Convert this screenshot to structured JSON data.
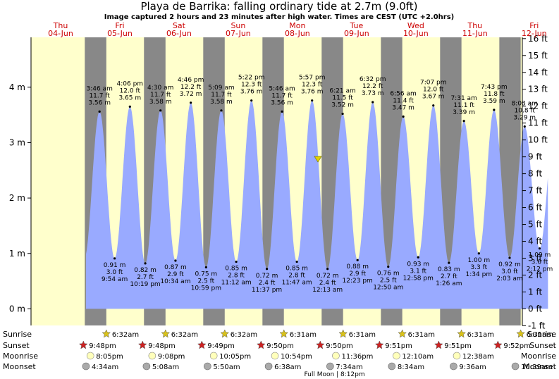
{
  "chart_data": {
    "type": "area",
    "title": "Playa de Barrika: falling  ordinary tide at 2.7m (9.0ft)",
    "subtitle": "Image captured 2 hours and 23 minutes after high water. Times are CEST (UTC +2.0hrs)",
    "y_left_ticks": [
      {
        "v": 0,
        "label": "0 m"
      },
      {
        "v": 1,
        "label": "1 m"
      },
      {
        "v": 2,
        "label": "2 m"
      },
      {
        "v": 3,
        "label": "3 m"
      },
      {
        "v": 4,
        "label": "4 m"
      }
    ],
    "y_right_ticks": [
      "-1 ft",
      "0 ft",
      "1 ft",
      "2 ft",
      "3 ft",
      "4 ft",
      "5 ft",
      "6 ft",
      "7 ft",
      "8 ft",
      "9 ft",
      "10 ft",
      "11 ft",
      "12 ft",
      "13 ft",
      "14 ft",
      "15 ft",
      "16 ft"
    ],
    "ylim": [
      -0.3,
      4.9
    ],
    "days": [
      {
        "name": "Thu",
        "date": "04-Jun"
      },
      {
        "name": "Fri",
        "date": "05-Jun"
      },
      {
        "name": "Sat",
        "date": "06-Jun"
      },
      {
        "name": "Sun",
        "date": "07-Jun"
      },
      {
        "name": "Mon",
        "date": "08-Jun"
      },
      {
        "name": "Tue",
        "date": "09-Jun"
      },
      {
        "name": "Wed",
        "date": "10-Jun"
      },
      {
        "name": "Thu",
        "date": "11-Jun"
      },
      {
        "name": "Fri",
        "date": "12-Jun"
      }
    ],
    "current": {
      "h": 2.7
    },
    "extremes": [
      {
        "type": "high",
        "time": "3:46 am",
        "ft": "11.7 ft",
        "m": "3.56 m",
        "h": 3.56,
        "t": 27.77
      },
      {
        "type": "low",
        "time": "9:54 am",
        "ft": "3.0 ft",
        "m": "0.91 m",
        "h": 0.91,
        "t": 33.9
      },
      {
        "type": "high",
        "time": "4:06 pm",
        "ft": "12.0 ft",
        "m": "3.65 m",
        "h": 3.65,
        "t": 40.1
      },
      {
        "type": "low",
        "time": "10:19 pm",
        "ft": "2.7 ft",
        "m": "0.82 m",
        "h": 0.82,
        "t": 46.32
      },
      {
        "type": "high",
        "time": "4:30 am",
        "ft": "11.7 ft",
        "m": "3.58 m",
        "h": 3.58,
        "t": 52.5
      },
      {
        "type": "low",
        "time": "10:34 am",
        "ft": "2.9 ft",
        "m": "0.87 m",
        "h": 0.87,
        "t": 58.57
      },
      {
        "type": "high",
        "time": "4:46 pm",
        "ft": "12.2 ft",
        "m": "3.72 m",
        "h": 3.72,
        "t": 64.77
      },
      {
        "type": "low",
        "time": "10:59 pm",
        "ft": "2.5 ft",
        "m": "0.75 m",
        "h": 0.75,
        "t": 70.98
      },
      {
        "type": "high",
        "time": "5:09 am",
        "ft": "11.7 ft",
        "m": "3.58 m",
        "h": 3.58,
        "t": 77.15
      },
      {
        "type": "low",
        "time": "11:12 am",
        "ft": "2.8 ft",
        "m": "0.85 m",
        "h": 0.85,
        "t": 83.2
      },
      {
        "type": "high",
        "time": "5:22 pm",
        "ft": "12.3 ft",
        "m": "3.76 m",
        "h": 3.76,
        "t": 89.37
      },
      {
        "type": "low",
        "time": "11:37 pm",
        "ft": "2.4 ft",
        "m": "0.72 m",
        "h": 0.72,
        "t": 95.62
      },
      {
        "type": "high",
        "time": "5:46 am",
        "ft": "11.7 ft",
        "m": "3.56 m",
        "h": 3.56,
        "t": 101.77
      },
      {
        "type": "low",
        "time": "11:47 am",
        "ft": "2.8 ft",
        "m": "0.85 m",
        "h": 0.85,
        "t": 107.78
      },
      {
        "type": "high",
        "time": "5:57 pm",
        "ft": "12.3 ft",
        "m": "3.76 m",
        "h": 3.76,
        "t": 113.95
      },
      {
        "type": "low",
        "time": "12:13 am",
        "ft": "2.4 ft",
        "m": "0.72 m",
        "h": 0.72,
        "t": 120.22
      },
      {
        "type": "high",
        "time": "6:21 am",
        "ft": "11.5 ft",
        "m": "3.52 m",
        "h": 3.52,
        "t": 126.35
      },
      {
        "type": "low",
        "time": "12:23 pm",
        "ft": "2.9 ft",
        "m": "0.88 m",
        "h": 0.88,
        "t": 132.38
      },
      {
        "type": "high",
        "time": "6:32 pm",
        "ft": "12.2 ft",
        "m": "3.73 m",
        "h": 3.73,
        "t": 138.53
      },
      {
        "type": "low",
        "time": "12:50 am",
        "ft": "2.5 ft",
        "m": "0.76 m",
        "h": 0.76,
        "t": 144.83
      },
      {
        "type": "high",
        "time": "6:56 am",
        "ft": "11.4 ft",
        "m": "3.47 m",
        "h": 3.47,
        "t": 150.93
      },
      {
        "type": "low",
        "time": "12:58 pm",
        "ft": "3.1 ft",
        "m": "0.93 m",
        "h": 0.93,
        "t": 156.97
      },
      {
        "type": "high",
        "time": "7:07 pm",
        "ft": "12.0 ft",
        "m": "3.67 m",
        "h": 3.67,
        "t": 163.12
      },
      {
        "type": "low",
        "time": "1:26 am",
        "ft": "2.7 ft",
        "m": "0.83 m",
        "h": 0.83,
        "t": 169.43
      },
      {
        "type": "high",
        "time": "7:31 am",
        "ft": "11.1 ft",
        "m": "3.39 m",
        "h": 3.39,
        "t": 175.52
      },
      {
        "type": "low",
        "time": "1:34 pm",
        "ft": "3.3 ft",
        "m": "1.00 m",
        "h": 1.0,
        "t": 181.57
      },
      {
        "type": "high",
        "time": "7:43 pm",
        "ft": "11.8 ft",
        "m": "3.59 m",
        "h": 3.59,
        "t": 187.72
      },
      {
        "type": "low",
        "time": "2:03 am",
        "ft": "3.0 ft",
        "m": "0.92 m",
        "h": 0.92,
        "t": 194.05
      },
      {
        "type": "high",
        "time": "8:08 am",
        "ft": "10.8 ft",
        "m": "3.29 m",
        "h": 3.29,
        "t": 200.13
      },
      {
        "type": "low",
        "time": "2:12 pm",
        "ft": "3.6 ft",
        "m": "1.09 m",
        "h": 1.09,
        "t": 206.2
      }
    ],
    "sun": [
      {
        "sunrise": "6:32am",
        "sunset": "9:48pm"
      },
      {
        "sunrise": "6:32am",
        "sunset": "9:48pm"
      },
      {
        "sunrise": "6:32am",
        "sunset": "9:49pm"
      },
      {
        "sunrise": "6:31am",
        "sunset": "9:50pm"
      },
      {
        "sunrise": "6:31am",
        "sunset": "9:50pm"
      },
      {
        "sunrise": "6:31am",
        "sunset": "9:51pm"
      },
      {
        "sunrise": "6:31am",
        "sunset": "9:51pm"
      },
      {
        "sunrise": "6:31am",
        "sunset": "9:52pm"
      }
    ],
    "moon": [
      {
        "moonrise": "8:05pm",
        "moonset": "4:34am"
      },
      {
        "moonrise": "9:08pm",
        "moonset": "5:08am"
      },
      {
        "moonrise": "10:05pm",
        "moonset": "5:50am"
      },
      {
        "moonrise": "10:54pm",
        "moonset": "6:38am"
      },
      {
        "moonrise": "11:36pm",
        "moonset": "7:34am"
      },
      {
        "moonrise": "12:10am",
        "moonset": "8:34am"
      },
      {
        "moonrise": "12:38am",
        "moonset": "9:36am"
      },
      {
        "moonrise": "",
        "moonset": "10:39am"
      }
    ],
    "row_labels": {
      "sunrise": "Sunrise",
      "sunset": "Sunset",
      "moonrise": "Moonrise",
      "moonset": "Moonset"
    },
    "moon_phase": "Full Moon | 8:12pm",
    "colors": {
      "water": "#99aaff",
      "day": "#ffffcc",
      "night": "#888888",
      "day_header": "#cc0000",
      "marker": "#e6d200"
    }
  }
}
